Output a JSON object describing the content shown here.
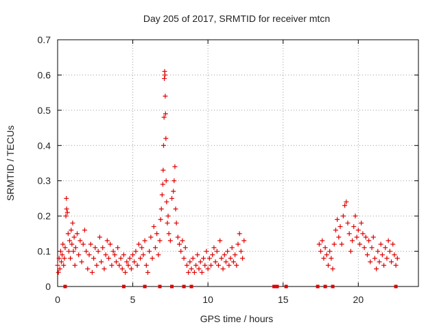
{
  "chart_data": {
    "type": "scatter",
    "title": "Day 205 of 2017, SRMTID for receiver mtcn",
    "xlabel": "GPS time / hours",
    "ylabel": "SRMTID / TECUs",
    "xlim": [
      0,
      24
    ],
    "ylim": [
      0,
      0.7
    ],
    "xticks": [
      0,
      5,
      10,
      15,
      20
    ],
    "xtick_labels": [
      "0",
      "5",
      "10",
      "15",
      "20"
    ],
    "yticks": [
      0,
      0.1,
      0.2,
      0.3,
      0.4,
      0.5,
      0.6,
      0.7
    ],
    "ytick_labels": [
      "0",
      "0.1",
      "0.2",
      "0.3",
      "0.4",
      "0.5",
      "0.6",
      "0.7"
    ],
    "grid": true,
    "marker": "+",
    "color": "#e00000",
    "series": [
      {
        "name": "SRMTID",
        "points": [
          [
            0.0,
            0.06
          ],
          [
            0.05,
            0.04
          ],
          [
            0.1,
            0.08
          ],
          [
            0.15,
            0.05
          ],
          [
            0.2,
            0.1
          ],
          [
            0.25,
            0.07
          ],
          [
            0.3,
            0.09
          ],
          [
            0.35,
            0.12
          ],
          [
            0.4,
            0.06
          ],
          [
            0.45,
            0.08
          ],
          [
            0.5,
            0.11
          ],
          [
            0.55,
            0.2
          ],
          [
            0.58,
            0.25
          ],
          [
            0.6,
            0.22
          ],
          [
            0.65,
            0.21
          ],
          [
            0.7,
            0.15
          ],
          [
            0.75,
            0.1
          ],
          [
            0.8,
            0.13
          ],
          [
            0.85,
            0.08
          ],
          [
            0.9,
            0.16
          ],
          [
            0.95,
            0.12
          ],
          [
            1.0,
            0.18
          ],
          [
            1.05,
            0.1
          ],
          [
            1.1,
            0.14
          ],
          [
            1.15,
            0.06
          ],
          [
            1.2,
            0.11
          ],
          [
            1.3,
            0.15
          ],
          [
            1.4,
            0.09
          ],
          [
            1.5,
            0.13
          ],
          [
            1.6,
            0.07
          ],
          [
            1.7,
            0.12
          ],
          [
            1.8,
            0.16
          ],
          [
            1.9,
            0.1
          ],
          [
            2.0,
            0.05
          ],
          [
            2.1,
            0.09
          ],
          [
            2.2,
            0.12
          ],
          [
            2.3,
            0.04
          ],
          [
            2.4,
            0.08
          ],
          [
            2.5,
            0.11
          ],
          [
            2.6,
            0.06
          ],
          [
            2.7,
            0.1
          ],
          [
            2.8,
            0.14
          ],
          [
            2.9,
            0.07
          ],
          [
            3.0,
            0.11
          ],
          [
            3.1,
            0.05
          ],
          [
            3.2,
            0.09
          ],
          [
            3.3,
            0.13
          ],
          [
            3.4,
            0.08
          ],
          [
            3.5,
            0.12
          ],
          [
            3.6,
            0.06
          ],
          [
            3.7,
            0.1
          ],
          [
            3.8,
            0.09
          ],
          [
            3.9,
            0.07
          ],
          [
            4.0,
            0.11
          ],
          [
            4.1,
            0.06
          ],
          [
            4.2,
            0.08
          ],
          [
            4.3,
            0.05
          ],
          [
            4.4,
            0.09
          ],
          [
            4.5,
            0.04
          ],
          [
            4.6,
            0.07
          ],
          [
            4.7,
            0.06
          ],
          [
            4.8,
            0.08
          ],
          [
            4.9,
            0.05
          ],
          [
            5.0,
            0.09
          ],
          [
            5.1,
            0.07
          ],
          [
            5.2,
            0.1
          ],
          [
            5.3,
            0.06
          ],
          [
            5.4,
            0.12
          ],
          [
            5.5,
            0.08
          ],
          [
            5.6,
            0.11
          ],
          [
            5.7,
            0.09
          ],
          [
            5.8,
            0.13
          ],
          [
            5.9,
            0.06
          ],
          [
            6.0,
            0.04
          ],
          [
            6.1,
            0.1
          ],
          [
            6.2,
            0.14
          ],
          [
            6.3,
            0.08
          ],
          [
            6.4,
            0.17
          ],
          [
            6.5,
            0.11
          ],
          [
            6.6,
            0.15
          ],
          [
            6.7,
            0.09
          ],
          [
            6.8,
            0.13
          ],
          [
            6.85,
            0.19
          ],
          [
            6.9,
            0.22
          ],
          [
            6.95,
            0.26
          ],
          [
            7.0,
            0.29
          ],
          [
            7.02,
            0.33
          ],
          [
            7.05,
            0.4
          ],
          [
            7.08,
            0.48
          ],
          [
            7.1,
            0.59
          ],
          [
            7.12,
            0.61
          ],
          [
            7.14,
            0.6
          ],
          [
            7.16,
            0.54
          ],
          [
            7.18,
            0.49
          ],
          [
            7.2,
            0.42
          ],
          [
            7.22,
            0.3
          ],
          [
            7.25,
            0.24
          ],
          [
            7.3,
            0.18
          ],
          [
            7.35,
            0.2
          ],
          [
            7.4,
            0.15
          ],
          [
            7.5,
            0.13
          ],
          [
            7.6,
            0.25
          ],
          [
            7.7,
            0.27
          ],
          [
            7.75,
            0.3
          ],
          [
            7.8,
            0.34
          ],
          [
            7.85,
            0.22
          ],
          [
            7.9,
            0.18
          ],
          [
            8.0,
            0.14
          ],
          [
            8.1,
            0.12
          ],
          [
            8.2,
            0.1
          ],
          [
            8.3,
            0.13
          ],
          [
            8.4,
            0.08
          ],
          [
            8.5,
            0.11
          ],
          [
            8.6,
            0.06
          ],
          [
            8.7,
            0.04
          ],
          [
            8.8,
            0.07
          ],
          [
            8.9,
            0.05
          ],
          [
            9.0,
            0.08
          ],
          [
            9.1,
            0.04
          ],
          [
            9.2,
            0.06
          ],
          [
            9.3,
            0.09
          ],
          [
            9.4,
            0.05
          ],
          [
            9.5,
            0.07
          ],
          [
            9.6,
            0.04
          ],
          [
            9.7,
            0.08
          ],
          [
            9.8,
            0.06
          ],
          [
            9.9,
            0.1
          ],
          [
            10.0,
            0.05
          ],
          [
            10.1,
            0.08
          ],
          [
            10.2,
            0.06
          ],
          [
            10.3,
            0.09
          ],
          [
            10.4,
            0.11
          ],
          [
            10.5,
            0.07
          ],
          [
            10.6,
            0.1
          ],
          [
            10.7,
            0.06
          ],
          [
            10.8,
            0.13
          ],
          [
            10.9,
            0.08
          ],
          [
            11.0,
            0.05
          ],
          [
            11.1,
            0.09
          ],
          [
            11.2,
            0.07
          ],
          [
            11.3,
            0.1
          ],
          [
            11.4,
            0.06
          ],
          [
            11.5,
            0.08
          ],
          [
            11.6,
            0.11
          ],
          [
            11.7,
            0.07
          ],
          [
            11.8,
            0.09
          ],
          [
            11.9,
            0.06
          ],
          [
            12.0,
            0.12
          ],
          [
            12.1,
            0.15
          ],
          [
            12.2,
            0.1
          ],
          [
            12.3,
            0.08
          ],
          [
            12.4,
            0.13
          ],
          [
            17.4,
            0.12
          ],
          [
            17.5,
            0.1
          ],
          [
            17.6,
            0.13
          ],
          [
            17.7,
            0.08
          ],
          [
            17.8,
            0.11
          ],
          [
            17.9,
            0.09
          ],
          [
            18.0,
            0.06
          ],
          [
            18.1,
            0.1
          ],
          [
            18.2,
            0.08
          ],
          [
            18.3,
            0.05
          ],
          [
            18.4,
            0.12
          ],
          [
            18.5,
            0.16
          ],
          [
            18.6,
            0.19
          ],
          [
            18.7,
            0.14
          ],
          [
            18.8,
            0.17
          ],
          [
            18.9,
            0.12
          ],
          [
            19.0,
            0.2
          ],
          [
            19.1,
            0.23
          ],
          [
            19.2,
            0.24
          ],
          [
            19.3,
            0.18
          ],
          [
            19.4,
            0.15
          ],
          [
            19.5,
            0.1
          ],
          [
            19.6,
            0.13
          ],
          [
            19.7,
            0.17
          ],
          [
            19.8,
            0.2
          ],
          [
            19.9,
            0.14
          ],
          [
            20.0,
            0.16
          ],
          [
            20.1,
            0.12
          ],
          [
            20.2,
            0.18
          ],
          [
            20.3,
            0.15
          ],
          [
            20.4,
            0.11
          ],
          [
            20.5,
            0.14
          ],
          [
            20.6,
            0.09
          ],
          [
            20.7,
            0.13
          ],
          [
            20.8,
            0.07
          ],
          [
            20.9,
            0.11
          ],
          [
            21.0,
            0.14
          ],
          [
            21.1,
            0.08
          ],
          [
            21.2,
            0.05
          ],
          [
            21.3,
            0.1
          ],
          [
            21.4,
            0.07
          ],
          [
            21.5,
            0.12
          ],
          [
            21.6,
            0.09
          ],
          [
            21.7,
            0.06
          ],
          [
            21.8,
            0.11
          ],
          [
            21.9,
            0.08
          ],
          [
            22.0,
            0.13
          ],
          [
            22.1,
            0.1
          ],
          [
            22.2,
            0.07
          ],
          [
            22.3,
            0.12
          ],
          [
            22.4,
            0.09
          ],
          [
            22.5,
            0.06
          ],
          [
            22.6,
            0.08
          ]
        ]
      }
    ],
    "baseline_markers_x": [
      0.5,
      4.4,
      5.8,
      6.8,
      7.6,
      8.4,
      8.9,
      14.4,
      14.6,
      15.2,
      17.3,
      17.8,
      18.3,
      22.5
    ]
  }
}
